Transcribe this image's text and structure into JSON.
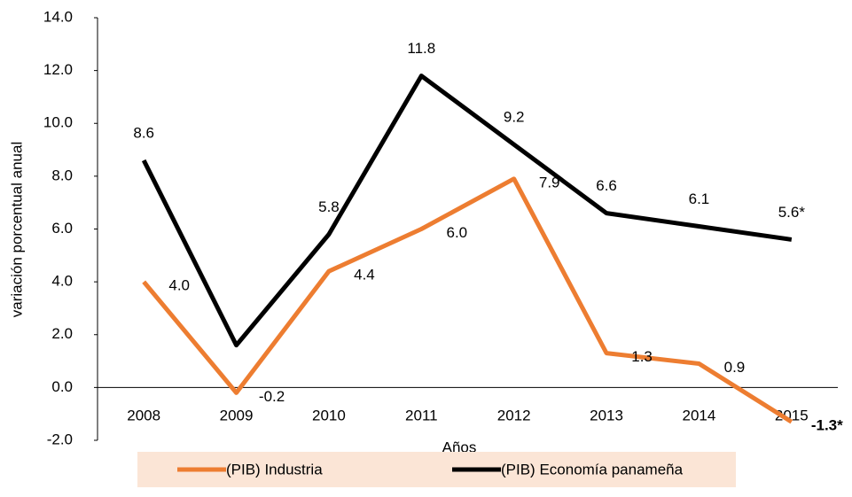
{
  "chart_data": {
    "type": "line",
    "x_label": "Años",
    "y_label": "variación porcentual anual",
    "categories": [
      "2008",
      "2009",
      "2010",
      "2011",
      "2012",
      "2013",
      "2014",
      "2015"
    ],
    "series": [
      {
        "name": "(PIB) Industria",
        "color": "#ed7d31",
        "values": [
          4.0,
          -0.2,
          4.4,
          6.0,
          7.9,
          1.3,
          0.9,
          -1.3
        ],
        "value_labels": [
          "4.0",
          "-0.2",
          "4.4",
          "6.0",
          "7.9",
          "1.3",
          "0.9",
          "-1.3*"
        ]
      },
      {
        "name": "(PIB) Economía panameña",
        "color": "#000000",
        "values": [
          8.6,
          1.6,
          5.8,
          11.8,
          9.2,
          6.6,
          6.1,
          5.6
        ],
        "value_labels": [
          "8.6",
          null,
          "5.8",
          "11.8",
          "9.2",
          "6.6",
          "6.1",
          "5.6*"
        ]
      }
    ],
    "ylim": [
      -2,
      14
    ],
    "yticks": [
      {
        "value": -2,
        "label": "-2.0"
      },
      {
        "value": 0,
        "label": "0.0"
      },
      {
        "value": 2,
        "label": "2.0"
      },
      {
        "value": 4,
        "label": "4.0"
      },
      {
        "value": 6,
        "label": "6.0"
      },
      {
        "value": 8,
        "label": "8.0"
      },
      {
        "value": 10,
        "label": "10.0"
      },
      {
        "value": 12,
        "label": "12.0"
      },
      {
        "value": 14,
        "label": "14.0"
      }
    ],
    "legend": "bottom"
  }
}
